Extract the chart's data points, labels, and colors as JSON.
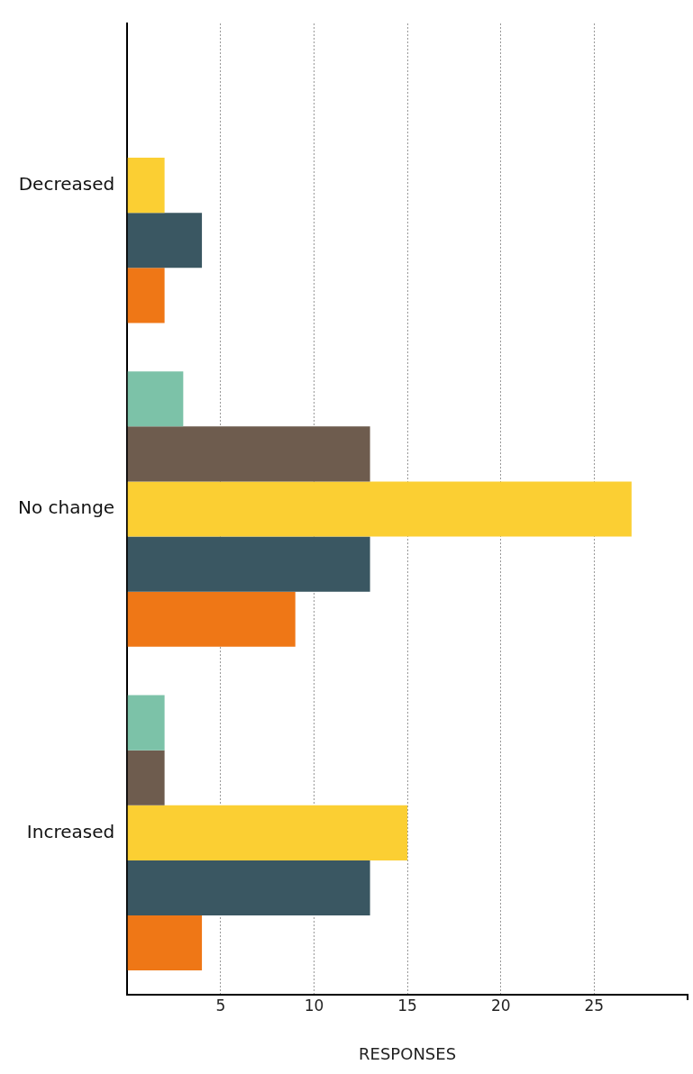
{
  "chart_data": {
    "type": "bar",
    "orientation": "horizontal",
    "xlabel": "RESPONSES",
    "categories": [
      "Decreased",
      "No change",
      "Increased"
    ],
    "series": [
      {
        "color": "#7cc2a8",
        "values": [
          null,
          3,
          2
        ]
      },
      {
        "color": "#6e5c4e",
        "values": [
          null,
          13,
          2
        ]
      },
      {
        "color": "#fbcf33",
        "values": [
          2,
          27,
          15
        ]
      },
      {
        "color": "#3a5762",
        "values": [
          4,
          13,
          13
        ]
      },
      {
        "color": "#ef7716",
        "values": [
          2,
          9,
          4
        ]
      }
    ],
    "xlim": [
      0,
      30
    ],
    "xticks": [
      {
        "value": 0,
        "label": null
      },
      5,
      10,
      15,
      20,
      25
    ],
    "grid": "x",
    "legend": false
  }
}
